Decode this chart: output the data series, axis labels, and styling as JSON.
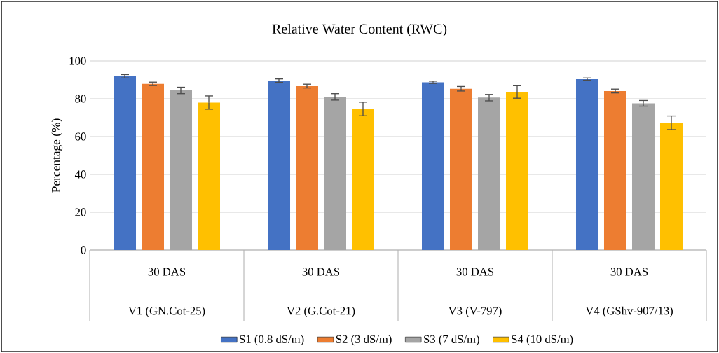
{
  "chart_data": {
    "type": "bar",
    "title": "Relative Water Content (RWC)",
    "ylabel": "Percentage (%)",
    "categories": [
      "V1 (GN.Cot-25)",
      "V2 (G.Cot-21)",
      "V3 (V-797)",
      "V4 (GShv-907/13)"
    ],
    "annotations": [
      "30 DAS",
      "30 DAS",
      "30 DAS",
      "30 DAS"
    ],
    "series": [
      {
        "name": "S1 (0.8 dS/m)",
        "color": "#4472c4",
        "values": [
          91.9,
          89.6,
          88.7,
          90.4
        ],
        "errors": [
          0.9,
          0.9,
          0.6,
          0.6
        ]
      },
      {
        "name": "S2 (3 dS/m)",
        "color": "#ed7d31",
        "values": [
          87.9,
          86.7,
          85.3,
          84.1
        ],
        "errors": [
          0.9,
          1.0,
          1.2,
          1.0
        ]
      },
      {
        "name": "S3 (7 dS/m)",
        "color": "#a5a5a5",
        "values": [
          84.4,
          81.0,
          80.6,
          77.6
        ],
        "errors": [
          1.7,
          1.7,
          1.7,
          1.5
        ]
      },
      {
        "name": "S4 (10 dS/m)",
        "color": "#ffc000",
        "values": [
          78.0,
          74.6,
          83.6,
          67.3
        ],
        "errors": [
          3.5,
          3.6,
          3.3,
          3.6
        ]
      }
    ],
    "ylim": [
      0,
      100
    ],
    "yticks": [
      0,
      20,
      40,
      60,
      80,
      100
    ],
    "grid": "y",
    "legend": "bottom"
  }
}
